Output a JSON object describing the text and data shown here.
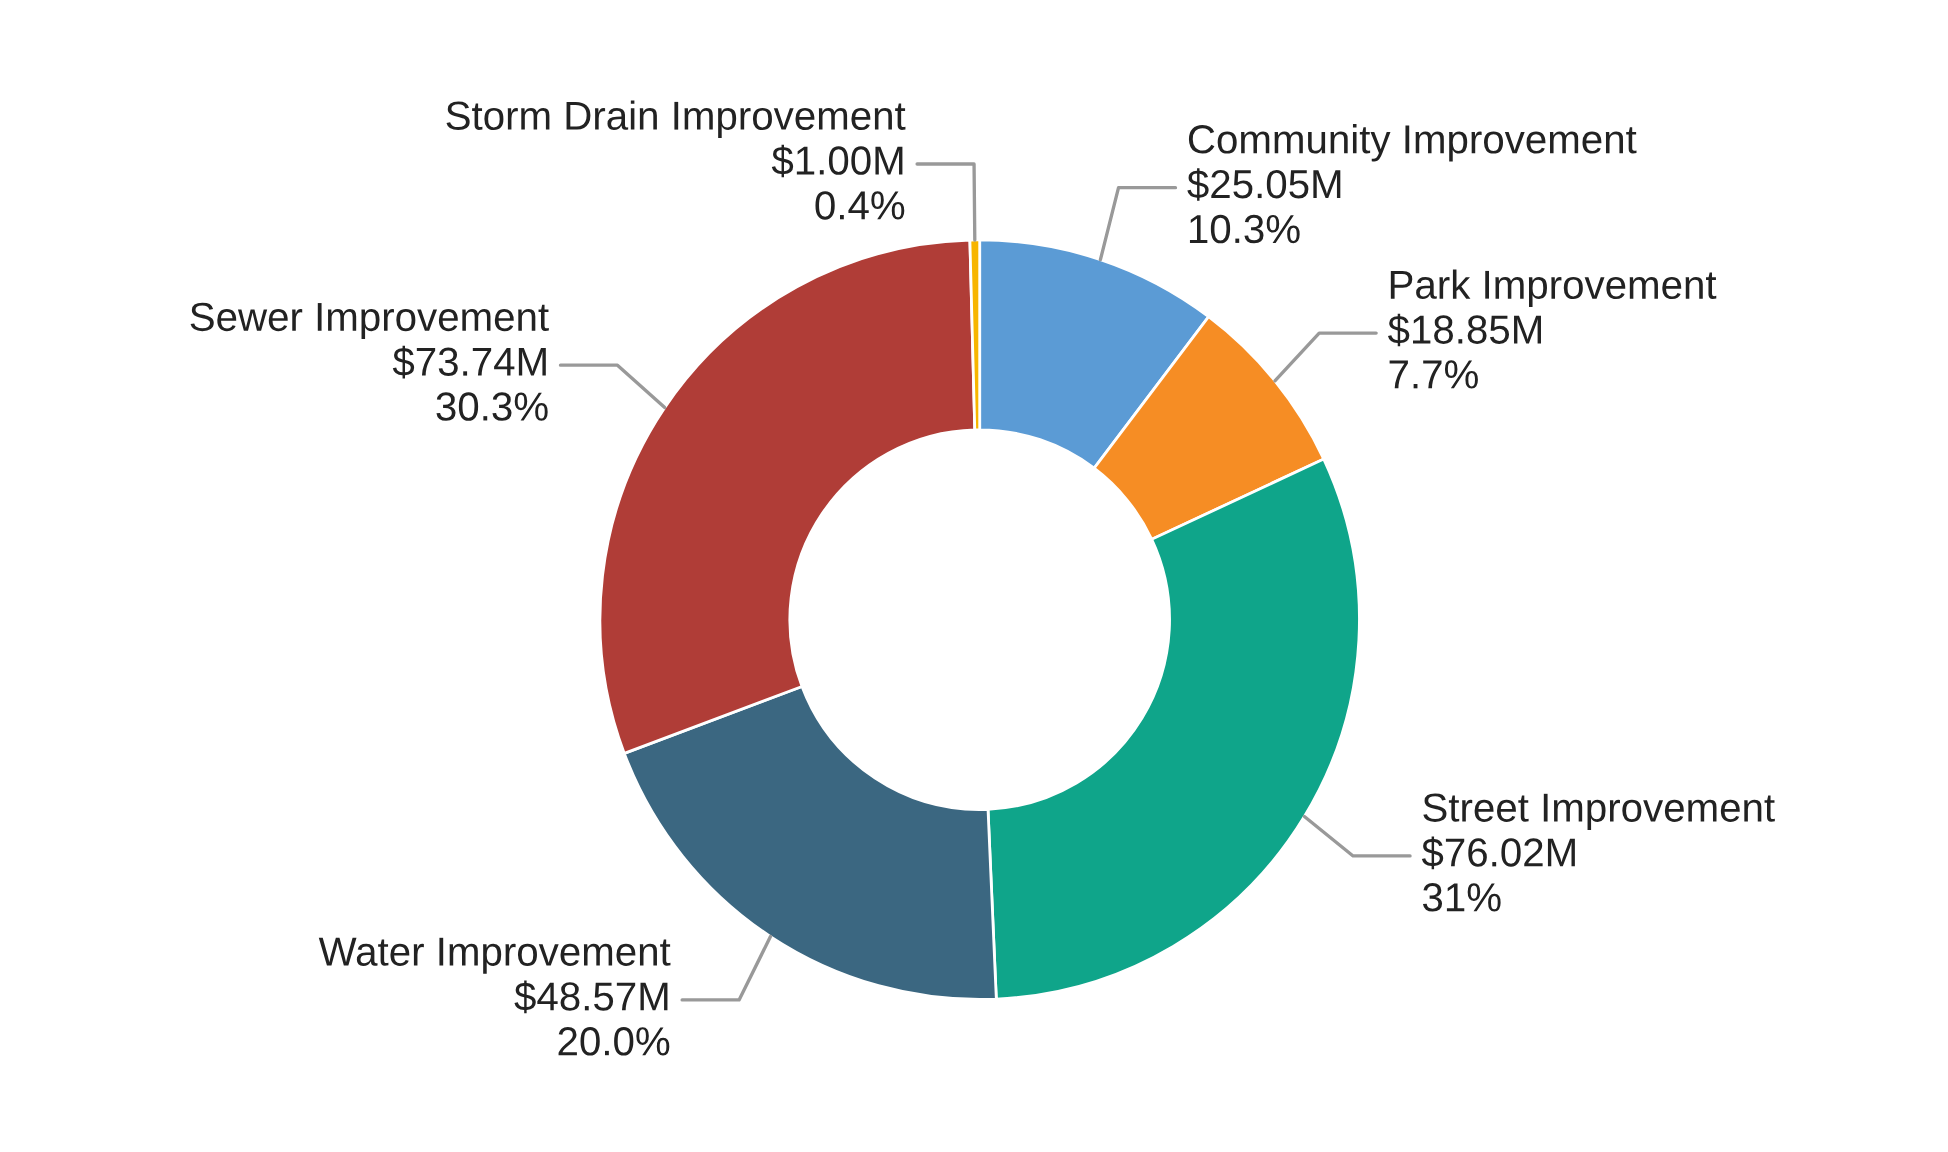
{
  "chart_data": {
    "type": "donut",
    "categories": [
      "Community Improvement",
      "Park Improvement",
      "Street Improvement",
      "Water Improvement",
      "Sewer Improvement",
      "Storm Drain Improvement"
    ],
    "values": [
      25.05,
      18.85,
      76.02,
      48.57,
      73.74,
      1.0
    ],
    "colors": [
      "#5b9bd5",
      "#f68d24",
      "#0fa58a",
      "#3b6781",
      "#b03d37",
      "#f7b500"
    ],
    "value_labels": [
      "$25.05M",
      "$18.85M",
      "$76.02M",
      "$48.57M",
      "$73.74M",
      "$1.00M"
    ],
    "annotations": [
      "10.3%",
      "7.7%",
      "31%",
      "20.0%",
      "30.3%",
      "0.4%"
    ],
    "legend": false
  }
}
